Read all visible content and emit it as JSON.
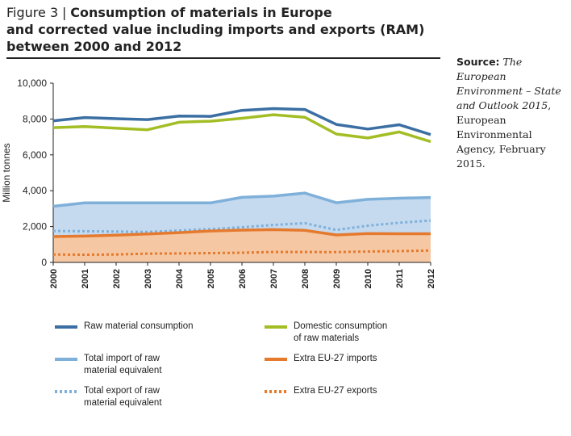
{
  "figure": {
    "label": "Figure 3",
    "separator": "|",
    "title_lines": [
      "Consumption of materials in Europe",
      "and corrected value including imports and exports (RAM)",
      "between 2000 and 2012"
    ]
  },
  "source": {
    "label": "Source:",
    "italic": "The European Environment – State and Outlook 2015",
    "rest": ", European Environmental Agency, February 2015."
  },
  "colors": {
    "raw": "#3b6fa3",
    "domestic": "#a3be25",
    "import": "#7fb0da",
    "import_fill": "#c5daef",
    "extra_import": "#e57a2e",
    "extra_import_fill": "#f5c8a3"
  },
  "chart_data": {
    "type": "line",
    "ylabel": "Million tonnes",
    "xlabel": "",
    "ylim": [
      0,
      10000
    ],
    "yticks": [
      "0",
      "2,000",
      "4,000",
      "6,000",
      "8,000",
      "10,000"
    ],
    "ytick_values": [
      0,
      2000,
      4000,
      6000,
      8000,
      10000
    ],
    "x": [
      "2000",
      "2001",
      "2002",
      "2003",
      "2004",
      "2005",
      "2006",
      "2007",
      "2008",
      "2009",
      "2010",
      "2011",
      "2012"
    ],
    "grid": false,
    "legend_position": "bottom",
    "series": [
      {
        "name": "Raw material consumption",
        "style": "solid",
        "color_key": "raw",
        "values": [
          7900,
          8080,
          8020,
          7970,
          8160,
          8150,
          8480,
          8580,
          8530,
          7700,
          7440,
          7680,
          7130
        ]
      },
      {
        "name": "Domestic consumption of raw materials",
        "style": "solid",
        "color_key": "domestic",
        "values": [
          7520,
          7580,
          7490,
          7400,
          7820,
          7880,
          8040,
          8240,
          8100,
          7160,
          6940,
          7280,
          6740
        ]
      },
      {
        "name": "Total import of raw material equivalent",
        "style": "solid",
        "color_key": "import",
        "values": [
          3130,
          3320,
          3320,
          3320,
          3320,
          3320,
          3630,
          3700,
          3870,
          3330,
          3520,
          3580,
          3620
        ]
      },
      {
        "name": "Extra EU-27 imports",
        "style": "solid",
        "color_key": "extra_import",
        "values": [
          1440,
          1470,
          1520,
          1590,
          1660,
          1750,
          1800,
          1830,
          1790,
          1530,
          1610,
          1600,
          1600
        ]
      },
      {
        "name": "Total export of raw material equivalent",
        "style": "dotted",
        "color_key": "import",
        "values": [
          1750,
          1740,
          1720,
          1700,
          1780,
          1860,
          1960,
          2090,
          2190,
          1810,
          2050,
          2210,
          2340
        ]
      },
      {
        "name": "Extra EU-27 exports",
        "style": "dotted",
        "color_key": "extra_import",
        "values": [
          440,
          430,
          440,
          490,
          500,
          520,
          540,
          580,
          580,
          570,
          610,
          630,
          660
        ]
      }
    ]
  },
  "legend": [
    {
      "line1": "Raw material consumption",
      "line2": ""
    },
    {
      "line1": "Domestic consumption",
      "line2": "of raw materials"
    },
    {
      "line1": "Total import of raw",
      "line2": "material equivalent"
    },
    {
      "line1": "Extra EU-27 imports",
      "line2": ""
    },
    {
      "line1": "Total export of raw",
      "line2": "material equivalent"
    },
    {
      "line1": "Extra EU-27 exports",
      "line2": ""
    }
  ]
}
